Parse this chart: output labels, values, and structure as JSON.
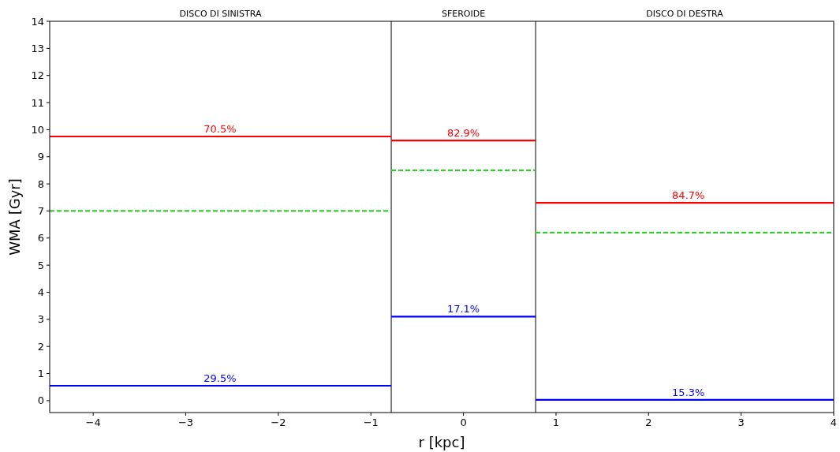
{
  "chart_data": {
    "type": "line",
    "xlabel": "r [kpc]",
    "ylabel": "WMA [Gyr]",
    "xlim": [
      -4.47,
      4.0
    ],
    "ylim": [
      -0.44,
      14
    ],
    "xticks": [
      {
        "value": -4,
        "label": "−4"
      },
      {
        "value": -3,
        "label": "−3"
      },
      {
        "value": -2,
        "label": "−2"
      },
      {
        "value": -1,
        "label": "−1"
      },
      0,
      1,
      2,
      3,
      4
    ],
    "yticks": [
      0,
      1,
      2,
      3,
      4,
      5,
      6,
      7,
      8,
      9,
      10,
      11,
      12,
      13,
      14
    ],
    "grid": false,
    "marker": "none",
    "series": [
      {
        "color": "#ff0000",
        "line_style": "solid",
        "x": [
          -4.47,
          -0.78
        ],
        "values": [
          9.75,
          9.75
        ]
      },
      {
        "color": "#ff0000",
        "line_style": "solid",
        "x": [
          -0.78,
          0.78
        ],
        "values": [
          9.6,
          9.6
        ]
      },
      {
        "color": "#ff0000",
        "line_style": "solid",
        "x": [
          0.78,
          4.0
        ],
        "values": [
          7.3,
          7.3
        ]
      },
      {
        "color": "#32cd32",
        "line_style": "dashed",
        "x": [
          -4.47,
          -0.78
        ],
        "values": [
          7.0,
          7.0
        ]
      },
      {
        "color": "#32cd32",
        "line_style": "dashed",
        "x": [
          -0.78,
          0.78
        ],
        "values": [
          8.5,
          8.5
        ]
      },
      {
        "color": "#32cd32",
        "line_style": "dashed",
        "x": [
          0.78,
          4.0
        ],
        "values": [
          6.2,
          6.2
        ]
      },
      {
        "color": "#0000ff",
        "line_style": "solid",
        "x": [
          -4.47,
          -0.78
        ],
        "values": [
          0.55,
          0.55
        ]
      },
      {
        "color": "#0000ff",
        "line_style": "solid",
        "x": [
          -0.78,
          0.78
        ],
        "values": [
          3.1,
          3.1
        ]
      },
      {
        "color": "#0000ff",
        "line_style": "solid",
        "x": [
          0.78,
          4.0
        ],
        "values": [
          0.03,
          0.03
        ]
      }
    ],
    "ref_lines": [
      {
        "axis": "x",
        "value": -0.78,
        "color": "#000000"
      },
      {
        "axis": "x",
        "value": 0.78,
        "color": "#000000"
      }
    ],
    "annotations": [
      "DISCO DI SINISTRA",
      "SFEROIDE",
      "DISCO DI DESTRA",
      {
        "text": "70.5%",
        "x": -2.63,
        "y": 9.75
      },
      {
        "text": "82.9%",
        "x": 0,
        "y": 9.6
      },
      {
        "text": "84.7%",
        "x": 2.43,
        "y": 7.3
      },
      {
        "text": "29.5%",
        "x": -2.63,
        "y": 0.55
      },
      {
        "text": "17.1%",
        "x": 0,
        "y": 3.1
      },
      {
        "text": "15.3%",
        "x": 2.43,
        "y": 0.03
      }
    ]
  }
}
